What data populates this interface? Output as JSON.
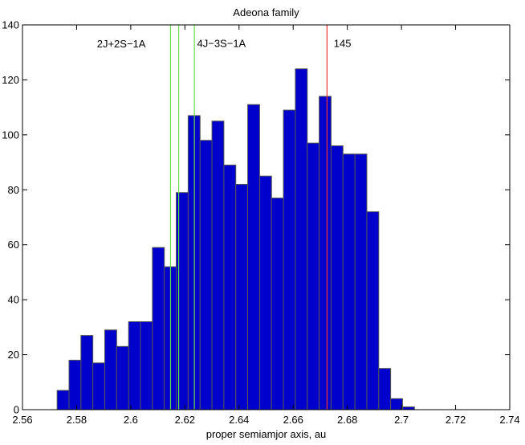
{
  "chart_data": {
    "type": "bar",
    "subtype": "histogram",
    "title": "Adeona family",
    "xlabel": "proper semiamjor axis, au",
    "ylabel": "",
    "xlim": [
      2.56,
      2.74
    ],
    "ylim": [
      0,
      140
    ],
    "grid": false,
    "bar_color": "#0000cc",
    "bar_edge_color": "#555555",
    "bin_width": 0.0044,
    "bin_start": 2.5728,
    "values": [
      7,
      18,
      27,
      17,
      29,
      23,
      32,
      32,
      59,
      52,
      79,
      107,
      98,
      105,
      89,
      82,
      111,
      85,
      77,
      109,
      124,
      97,
      114,
      96,
      93,
      93,
      72,
      15,
      4,
      1
    ],
    "x_tick_labels": [
      "2.56",
      "2.58",
      "2.6",
      "2.62",
      "2.64",
      "2.66",
      "2.68",
      "2.7",
      "2.72",
      "2.74"
    ],
    "x_tick_values": [
      2.56,
      2.58,
      2.6,
      2.62,
      2.64,
      2.66,
      2.68,
      2.7,
      2.72,
      2.74
    ],
    "y_tick_labels": [
      "0",
      "20",
      "40",
      "60",
      "80",
      "100",
      "120",
      "140"
    ],
    "y_tick_values": [
      0,
      20,
      40,
      60,
      80,
      100,
      120,
      140
    ],
    "vertical_lines": [
      {
        "x": 2.6147,
        "color": "#66dd44"
      },
      {
        "x": 2.6177,
        "color": "#66dd44"
      },
      {
        "x": 2.6235,
        "color": "#66dd44"
      },
      {
        "x": 2.6725,
        "color": "#ee3333"
      }
    ],
    "annotations": [
      {
        "text": "2J+2S−1A",
        "x": 2.5875,
        "y": 131.8
      },
      {
        "text": "4J−3S−1A",
        "x": 2.6245,
        "y": 132.0
      },
      {
        "text": "145",
        "x": 2.675,
        "y": 132.0
      }
    ]
  }
}
